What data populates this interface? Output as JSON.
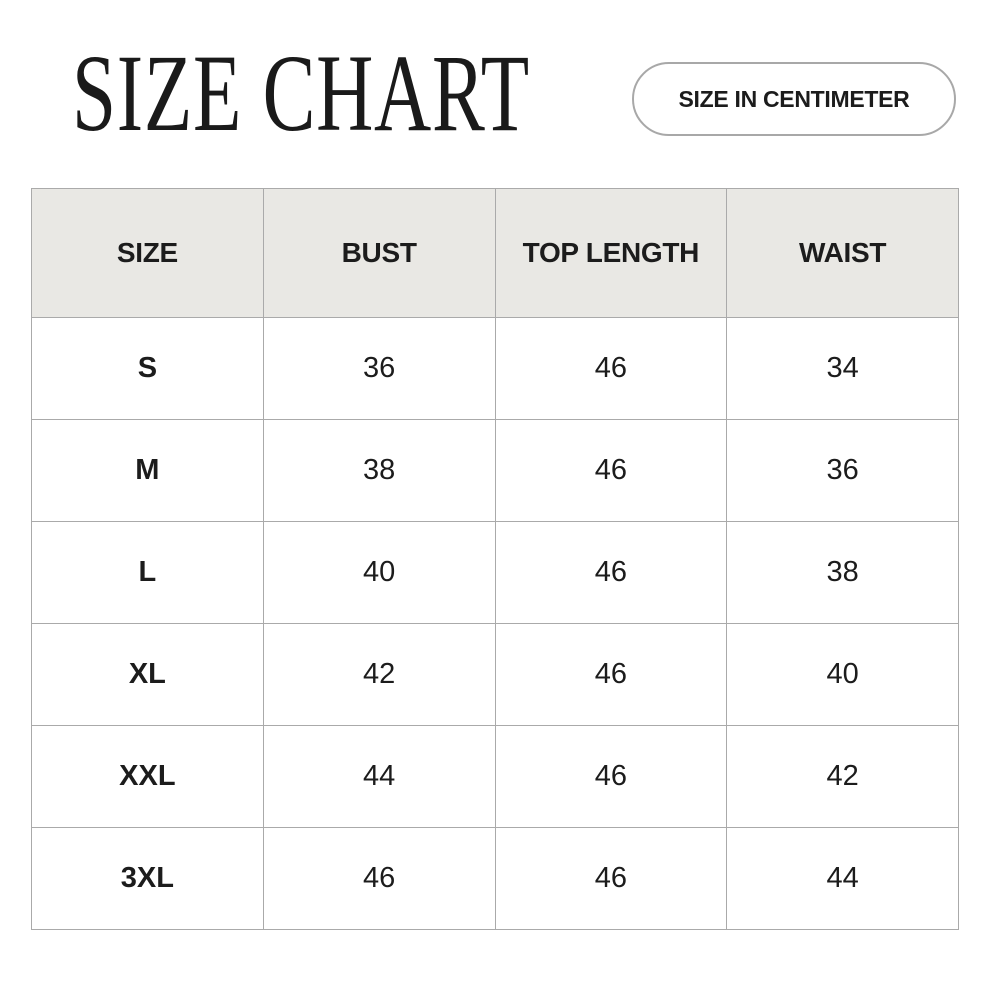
{
  "title": "SIZE CHART",
  "unit_badge": "SIZE IN CENTIMETER",
  "table": {
    "headers": [
      "SIZE",
      "BUST",
      "TOP LENGTH",
      "WAIST"
    ],
    "rows": [
      [
        "S",
        "36",
        "46",
        "34"
      ],
      [
        "M",
        "38",
        "46",
        "36"
      ],
      [
        "L",
        "40",
        "46",
        "38"
      ],
      [
        "XL",
        "42",
        "46",
        "40"
      ],
      [
        "XXL",
        "44",
        "46",
        "42"
      ],
      [
        "3XL",
        "46",
        "46",
        "44"
      ]
    ]
  },
  "colors": {
    "header_bg": "#e9e8e4",
    "border": "#aaaaaa",
    "text": "#1c1c1c"
  }
}
